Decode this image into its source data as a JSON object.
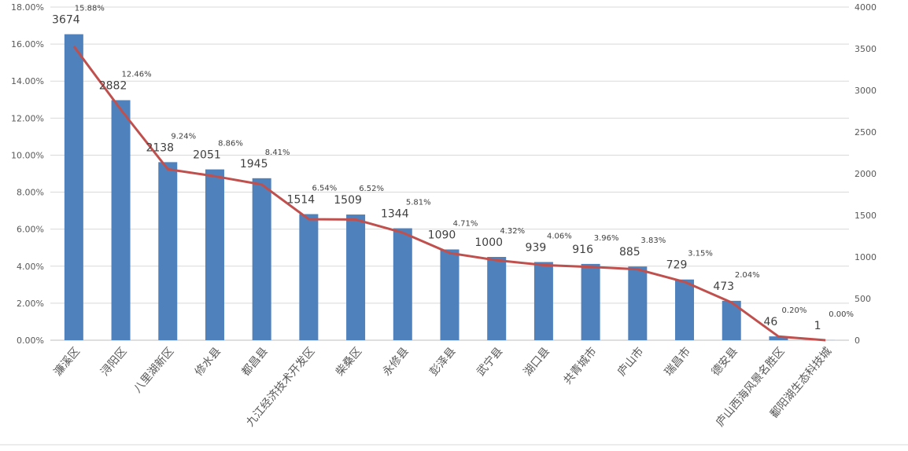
{
  "chart_data": {
    "type": "bar+line",
    "categories": [
      "濂溪区",
      "浔阳区",
      "八里湖新区",
      "修水县",
      "都昌县",
      "九江经济技术开发区",
      "柴桑区",
      "永修县",
      "彭泽县",
      "武宁县",
      "湖口县",
      "共青城市",
      "庐山市",
      "瑞昌市",
      "德安县",
      "庐山西海风景名胜区",
      "鄱阳湖生态科技城"
    ],
    "series": [
      {
        "type": "bar",
        "axis": "right",
        "color": "#4f81bd",
        "values": [
          3674,
          2882,
          2138,
          2051,
          1945,
          1514,
          1509,
          1344,
          1090,
          1000,
          939,
          916,
          885,
          729,
          473,
          46,
          1
        ]
      },
      {
        "type": "line",
        "axis": "left",
        "color": "#c0504d",
        "values": [
          15.88,
          12.46,
          9.24,
          8.86,
          8.41,
          6.54,
          6.52,
          5.81,
          4.71,
          4.32,
          4.06,
          3.96,
          3.83,
          3.15,
          2.04,
          0.2,
          0.0
        ],
        "labels": [
          "15.88%",
          "12.46%",
          "9.24%",
          "8.86%",
          "8.41%",
          "6.54%",
          "6.52%",
          "5.81%",
          "4.71%",
          "4.32%",
          "4.06%",
          "3.96%",
          "3.83%",
          "3.15%",
          "2.04%",
          "0.20%",
          "0.00%"
        ]
      }
    ],
    "left_axis": {
      "ylim": [
        0,
        18
      ],
      "ticks": [
        "0.00%",
        "2.00%",
        "4.00%",
        "6.00%",
        "8.00%",
        "10.00%",
        "12.00%",
        "14.00%",
        "16.00%",
        "18.00%"
      ]
    },
    "right_axis": {
      "ylim": [
        0,
        4000
      ],
      "ticks": [
        "0",
        "500",
        "1000",
        "1500",
        "2000",
        "2500",
        "3000",
        "3500",
        "4000"
      ]
    },
    "grid": true,
    "legend": "none"
  }
}
